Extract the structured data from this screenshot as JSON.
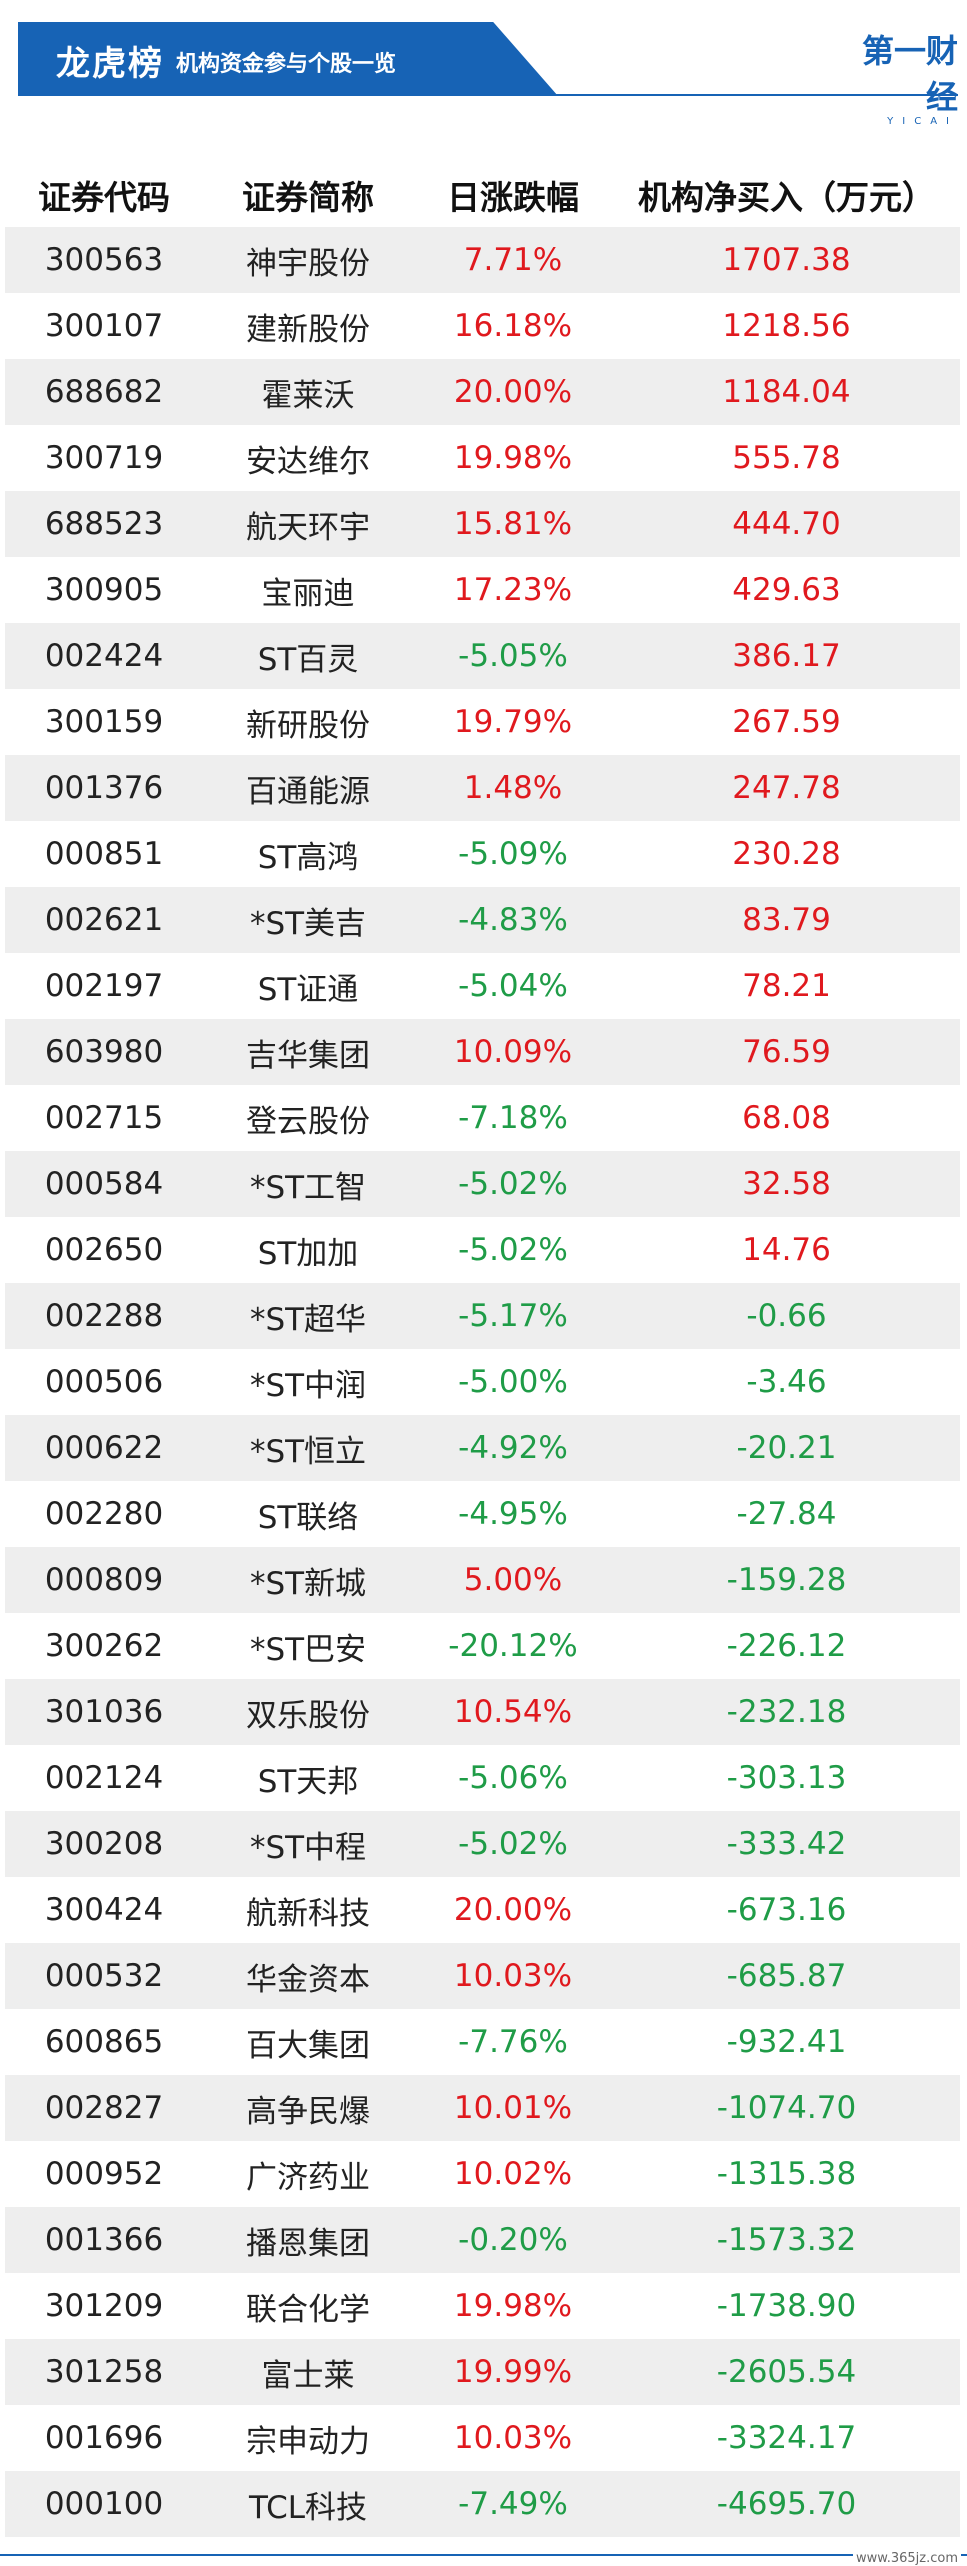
{
  "banner": {
    "title": "龙虎榜",
    "subtitle": "机构资金参与个股一览",
    "logo": "第一财经",
    "logo_sub": "YICAI"
  },
  "table": {
    "headers": [
      "证券代码",
      "证券简称",
      "日涨跌幅",
      "机构净买入（万元）"
    ],
    "rows": [
      {
        "code": "300563",
        "name": "神宇股份",
        "change": "7.71%",
        "net": "1707.38",
        "change_dir": "up",
        "net_dir": "up"
      },
      {
        "code": "300107",
        "name": "建新股份",
        "change": "16.18%",
        "net": "1218.56",
        "change_dir": "up",
        "net_dir": "up"
      },
      {
        "code": "688682",
        "name": "霍莱沃",
        "change": "20.00%",
        "net": "1184.04",
        "change_dir": "up",
        "net_dir": "up"
      },
      {
        "code": "300719",
        "name": "安达维尔",
        "change": "19.98%",
        "net": "555.78",
        "change_dir": "up",
        "net_dir": "up"
      },
      {
        "code": "688523",
        "name": "航天环宇",
        "change": "15.81%",
        "net": "444.70",
        "change_dir": "up",
        "net_dir": "up"
      },
      {
        "code": "300905",
        "name": "宝丽迪",
        "change": "17.23%",
        "net": "429.63",
        "change_dir": "up",
        "net_dir": "up"
      },
      {
        "code": "002424",
        "name": "ST百灵",
        "change": "-5.05%",
        "net": "386.17",
        "change_dir": "down",
        "net_dir": "up"
      },
      {
        "code": "300159",
        "name": "新研股份",
        "change": "19.79%",
        "net": "267.59",
        "change_dir": "up",
        "net_dir": "up"
      },
      {
        "code": "001376",
        "name": "百通能源",
        "change": "1.48%",
        "net": "247.78",
        "change_dir": "up",
        "net_dir": "up"
      },
      {
        "code": "000851",
        "name": "ST高鸿",
        "change": "-5.09%",
        "net": "230.28",
        "change_dir": "down",
        "net_dir": "up"
      },
      {
        "code": "002621",
        "name": "*ST美吉",
        "change": "-4.83%",
        "net": "83.79",
        "change_dir": "down",
        "net_dir": "up"
      },
      {
        "code": "002197",
        "name": "ST证通",
        "change": "-5.04%",
        "net": "78.21",
        "change_dir": "down",
        "net_dir": "up"
      },
      {
        "code": "603980",
        "name": "吉华集团",
        "change": "10.09%",
        "net": "76.59",
        "change_dir": "up",
        "net_dir": "up"
      },
      {
        "code": "002715",
        "name": "登云股份",
        "change": "-7.18%",
        "net": "68.08",
        "change_dir": "down",
        "net_dir": "up"
      },
      {
        "code": "000584",
        "name": "*ST工智",
        "change": "-5.02%",
        "net": "32.58",
        "change_dir": "down",
        "net_dir": "up"
      },
      {
        "code": "002650",
        "name": "ST加加",
        "change": "-5.02%",
        "net": "14.76",
        "change_dir": "down",
        "net_dir": "up"
      },
      {
        "code": "002288",
        "name": "*ST超华",
        "change": "-5.17%",
        "net": "-0.66",
        "change_dir": "down",
        "net_dir": "down"
      },
      {
        "code": "000506",
        "name": "*ST中润",
        "change": "-5.00%",
        "net": "-3.46",
        "change_dir": "down",
        "net_dir": "down"
      },
      {
        "code": "000622",
        "name": "*ST恒立",
        "change": "-4.92%",
        "net": "-20.21",
        "change_dir": "down",
        "net_dir": "down"
      },
      {
        "code": "002280",
        "name": "ST联络",
        "change": "-4.95%",
        "net": "-27.84",
        "change_dir": "down",
        "net_dir": "down"
      },
      {
        "code": "000809",
        "name": "*ST新城",
        "change": "5.00%",
        "net": "-159.28",
        "change_dir": "up",
        "net_dir": "down"
      },
      {
        "code": "300262",
        "name": "*ST巴安",
        "change": "-20.12%",
        "net": "-226.12",
        "change_dir": "down",
        "net_dir": "down"
      },
      {
        "code": "301036",
        "name": "双乐股份",
        "change": "10.54%",
        "net": "-232.18",
        "change_dir": "up",
        "net_dir": "down"
      },
      {
        "code": "002124",
        "name": "ST天邦",
        "change": "-5.06%",
        "net": "-303.13",
        "change_dir": "down",
        "net_dir": "down"
      },
      {
        "code": "300208",
        "name": "*ST中程",
        "change": "-5.02%",
        "net": "-333.42",
        "change_dir": "down",
        "net_dir": "down"
      },
      {
        "code": "300424",
        "name": "航新科技",
        "change": "20.00%",
        "net": "-673.16",
        "change_dir": "up",
        "net_dir": "down"
      },
      {
        "code": "000532",
        "name": "华金资本",
        "change": "10.03%",
        "net": "-685.87",
        "change_dir": "up",
        "net_dir": "down"
      },
      {
        "code": "600865",
        "name": "百大集团",
        "change": "-7.76%",
        "net": "-932.41",
        "change_dir": "down",
        "net_dir": "down"
      },
      {
        "code": "002827",
        "name": "高争民爆",
        "change": "10.01%",
        "net": "-1074.70",
        "change_dir": "up",
        "net_dir": "down"
      },
      {
        "code": "000952",
        "name": "广济药业",
        "change": "10.02%",
        "net": "-1315.38",
        "change_dir": "up",
        "net_dir": "down"
      },
      {
        "code": "001366",
        "name": "播恩集团",
        "change": "-0.20%",
        "net": "-1573.32",
        "change_dir": "down",
        "net_dir": "down"
      },
      {
        "code": "301209",
        "name": "联合化学",
        "change": "19.98%",
        "net": "-1738.90",
        "change_dir": "up",
        "net_dir": "down"
      },
      {
        "code": "301258",
        "name": "富士莱",
        "change": "19.99%",
        "net": "-2605.54",
        "change_dir": "up",
        "net_dir": "down"
      },
      {
        "code": "001696",
        "name": "宗申动力",
        "change": "10.03%",
        "net": "-3324.17",
        "change_dir": "up",
        "net_dir": "down"
      },
      {
        "code": "000100",
        "name": "TCL科技",
        "change": "-7.49%",
        "net": "-4695.70",
        "change_dir": "down",
        "net_dir": "down"
      }
    ]
  },
  "watermark": "www.365jz.com",
  "colors": {
    "brand_blue": "#1763b5",
    "up_red": "#e0191e",
    "down_green": "#1f9c47",
    "stripe_gray": "#eeeeee"
  }
}
